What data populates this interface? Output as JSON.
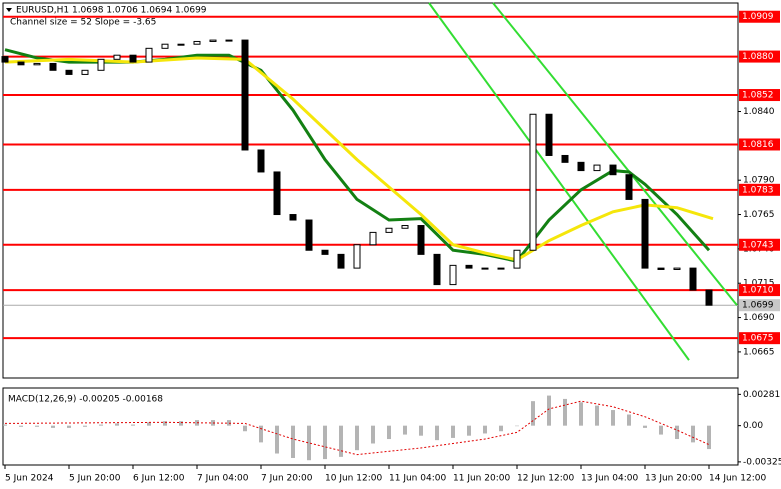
{
  "chart_data": [
    {
      "type": "candlestick",
      "title": "EURUSD,H1  1.0698 1.0706 1.0694 1.0699",
      "subtitle": "Channel size = 52 Slope = -3.65",
      "x": [
        0,
        4,
        8,
        12,
        16,
        20,
        24,
        28,
        32,
        36,
        40,
        44,
        48,
        52,
        56,
        60,
        64,
        68,
        72,
        76,
        80,
        84,
        88,
        92,
        96,
        100,
        104,
        108,
        112,
        116,
        120,
        124,
        128,
        132,
        136,
        140,
        144,
        148,
        152,
        156,
        160,
        164,
        168,
        172,
        176
      ],
      "open": [
        1.088,
        1.0876,
        1.0874,
        1.0875,
        1.087,
        1.0867,
        1.087,
        1.0878,
        1.0881,
        1.0876,
        1.0886,
        1.0889,
        1.0889,
        1.0891,
        1.0892,
        1.0892,
        1.0812,
        1.0796,
        1.0765,
        1.0761,
        1.0739,
        1.0736,
        1.0726,
        1.0743,
        1.0752,
        1.0755,
        1.0757,
        1.0736,
        1.0714,
        1.0728,
        1.0726,
        1.0726,
        1.0726,
        1.0739,
        1.0838,
        1.0808,
        1.0803,
        1.0797,
        1.0801,
        1.0794,
        1.0776,
        1.0726,
        1.0725,
        1.0726,
        1.071
      ],
      "close": [
        1.0876,
        1.0874,
        1.0875,
        1.087,
        1.0867,
        1.087,
        1.0878,
        1.0881,
        1.0876,
        1.0886,
        1.0889,
        1.0889,
        1.0891,
        1.0892,
        1.0892,
        1.0812,
        1.0796,
        1.0765,
        1.0761,
        1.0739,
        1.0736,
        1.0726,
        1.0743,
        1.0752,
        1.0755,
        1.0757,
        1.0736,
        1.0714,
        1.0728,
        1.0726,
        1.0726,
        1.0726,
        1.0739,
        1.0838,
        1.0808,
        1.0803,
        1.0797,
        1.0801,
        1.0794,
        1.0776,
        1.0726,
        1.0725,
        1.0726,
        1.071,
        1.0699
      ],
      "xlim": [
        -0.5,
        183.25
      ],
      "ylim": [
        1.0646,
        1.0919
      ],
      "xticks": [
        {
          "value": 0,
          "label": "5 Jun 2024"
        },
        {
          "value": 16,
          "label": "5 Jun 20:00"
        },
        {
          "value": 32,
          "label": "6 Jun 12:00"
        },
        {
          "value": 48,
          "label": "7 Jun 04:00"
        },
        {
          "value": 64,
          "label": "7 Jun 20:00"
        },
        {
          "value": 80,
          "label": "10 Jun 12:00"
        },
        {
          "value": 96,
          "label": "11 Jun 04:00"
        },
        {
          "value": 112,
          "label": "11 Jun 20:00"
        },
        {
          "value": 128,
          "label": "12 Jun 12:00"
        },
        {
          "value": 144,
          "label": "13 Jun 04:00"
        },
        {
          "value": 160,
          "label": "13 Jun 20:00"
        },
        {
          "value": 176,
          "label": "14 Jun 12:00"
        }
      ],
      "yticks": [
        {
          "value": 1.084,
          "label": "1.0840"
        },
        {
          "value": 1.079,
          "label": "1.0790"
        },
        {
          "value": 1.0765,
          "label": "1.0765"
        },
        {
          "value": 1.074,
          "label": "1.0740"
        },
        {
          "value": 1.0715,
          "label": "1.0715"
        },
        {
          "value": 1.069,
          "label": "1.0690"
        },
        {
          "value": 1.0665,
          "label": "1.0665"
        }
      ],
      "levels_color": "#ff0000",
      "levels": [
        {
          "value": 1.0909,
          "label": "1.0909"
        },
        {
          "value": 1.088,
          "label": "1.0880"
        },
        {
          "value": 1.0852,
          "label": "1.0852"
        },
        {
          "value": 1.0816,
          "label": "1.0816"
        },
        {
          "value": 1.0783,
          "label": "1.0783"
        },
        {
          "value": 1.0743,
          "label": "1.0743"
        },
        {
          "value": 1.071,
          "label": "1.0710"
        },
        {
          "value": 1.0675,
          "label": "1.0675"
        }
      ],
      "last": {
        "value": 1.0699,
        "label": "1.0699"
      },
      "overlays": [
        {
          "color": "#138013",
          "x": [
            0,
            8,
            16,
            24,
            32,
            40,
            48,
            56,
            64,
            72,
            80,
            88,
            96,
            104,
            112,
            120,
            128,
            136,
            144,
            152,
            156,
            160,
            168,
            176
          ],
          "values": [
            1.0885,
            1.0879,
            1.0876,
            1.0876,
            1.0876,
            1.0878,
            1.0881,
            1.0881,
            1.087,
            1.0841,
            1.0805,
            1.0776,
            1.0761,
            1.0762,
            1.0739,
            1.0736,
            1.0731,
            1.0761,
            1.0783,
            1.0797,
            1.0796,
            1.0787,
            1.0765,
            1.0739
          ]
        },
        {
          "color": "#f5e60a",
          "x": [
            0,
            16,
            32,
            48,
            60,
            72,
            88,
            104,
            112,
            120,
            128,
            136,
            144,
            152,
            160,
            168,
            177
          ],
          "values": [
            1.0876,
            1.0878,
            1.0876,
            1.0879,
            1.0878,
            1.0849,
            1.0805,
            1.0765,
            1.0743,
            1.0737,
            1.0732,
            1.0746,
            1.0757,
            1.0767,
            1.0772,
            1.077,
            1.0762
          ]
        }
      ],
      "channel_color": "#33dd33",
      "channel": [
        {
          "x": [
            106,
            171
          ],
          "values": [
            1.0919,
            1.0659
          ]
        },
        {
          "x": [
            122,
            183
          ],
          "values": [
            1.0919,
            1.0699
          ]
        }
      ]
    },
    {
      "type": "macd",
      "title": "MACD(12,26,9) -0.00205 -0.00168",
      "color": "#b4b4b4",
      "x": [
        0,
        4,
        8,
        12,
        16,
        20,
        24,
        28,
        32,
        36,
        40,
        44,
        48,
        52,
        56,
        60,
        64,
        68,
        72,
        76,
        80,
        84,
        88,
        92,
        96,
        100,
        104,
        108,
        112,
        116,
        120,
        124,
        128,
        132,
        136,
        140,
        144,
        148,
        152,
        156,
        160,
        164,
        168,
        172,
        176
      ],
      "values": [
        0.0001,
        -0.0001,
        -0.0001,
        -0.0002,
        -0.0002,
        -0.0001,
        0.0001,
        0.0002,
        0.0001,
        0.0003,
        0.0004,
        0.0004,
        0.0005,
        0.0005,
        0.0005,
        -0.0005,
        -0.0015,
        -0.0025,
        -0.0029,
        -0.0031,
        -0.003,
        -0.0028,
        -0.0022,
        -0.0016,
        -0.0012,
        -0.0008,
        -0.0009,
        -0.0013,
        -0.0011,
        -0.0009,
        -0.0007,
        -0.0005,
        0.0,
        0.0022,
        0.0027,
        0.0024,
        0.0021,
        0.0018,
        0.0014,
        0.001,
        -0.0002,
        -0.0008,
        -0.0012,
        -0.0015,
        -0.0021
      ],
      "signal": {
        "color": "#e00000",
        "x": [
          0,
          40,
          60,
          72,
          88,
          104,
          120,
          128,
          136,
          144,
          152,
          160,
          168,
          176
        ],
        "values": [
          0.0002,
          0.0003,
          0.0002,
          -0.0012,
          -0.0026,
          -0.002,
          -0.0012,
          -0.0006,
          0.0015,
          0.0022,
          0.0017,
          0.0008,
          -0.0004,
          -0.0017
        ]
      },
      "ylim": [
        -0.00353,
        0.00338
      ],
      "yticks": [
        {
          "value": 0.00281,
          "label": "0.00281"
        },
        {
          "value": 0,
          "label": "0.00"
        },
        {
          "value": -0.00325,
          "label": "-0.00325"
        }
      ]
    }
  ]
}
